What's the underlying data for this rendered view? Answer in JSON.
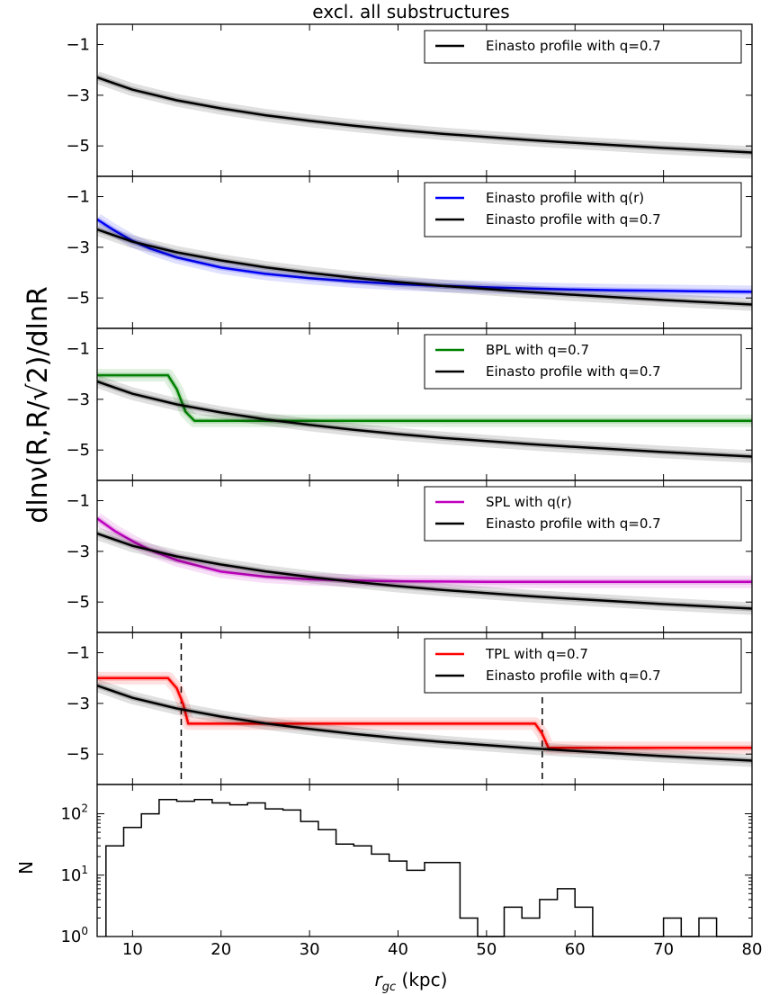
{
  "figure": {
    "title": "excl. all substructures",
    "shared_ylabel": "dlnν(R,R/√2)/dlnR",
    "xlabel_main": "r",
    "xlabel_sub": "gc",
    "xlabel_unit": " (kpc)"
  },
  "chart_data": [
    {
      "type": "line",
      "panel": 1,
      "xlim": [
        6,
        80
      ],
      "ylim": [
        -6.2,
        -0.2
      ],
      "yticks": [
        -1,
        -3,
        -5
      ],
      "grid": false,
      "legend_position": "top-right",
      "series": [
        {
          "name": "Einasto profile with q=0.7",
          "color": "#000000",
          "x": [
            6,
            10,
            15,
            20,
            25,
            30,
            35,
            40,
            45,
            50,
            55,
            60,
            65,
            70,
            75,
            80
          ],
          "y": [
            -2.3,
            -2.78,
            -3.2,
            -3.52,
            -3.79,
            -4.01,
            -4.2,
            -4.37,
            -4.52,
            -4.65,
            -4.77,
            -4.88,
            -4.98,
            -5.08,
            -5.17,
            -5.26
          ]
        }
      ]
    },
    {
      "type": "line",
      "panel": 2,
      "xlim": [
        6,
        80
      ],
      "ylim": [
        -6.2,
        -0.2
      ],
      "yticks": [
        -1,
        -3,
        -5
      ],
      "grid": false,
      "legend_position": "top-right",
      "series": [
        {
          "name": "Einasto profile with q(r)",
          "color": "#0000ff",
          "x": [
            6,
            8,
            10,
            12,
            15,
            20,
            25,
            30,
            35,
            40,
            45,
            50,
            55,
            60,
            65,
            70,
            75,
            80
          ],
          "y": [
            -1.9,
            -2.35,
            -2.75,
            -3.05,
            -3.4,
            -3.8,
            -4.05,
            -4.22,
            -4.35,
            -4.45,
            -4.52,
            -4.58,
            -4.63,
            -4.67,
            -4.7,
            -4.72,
            -4.74,
            -4.76
          ]
        },
        {
          "name": "Einasto profile with q=0.7",
          "color": "#000000",
          "x": [
            6,
            10,
            15,
            20,
            25,
            30,
            35,
            40,
            45,
            50,
            55,
            60,
            65,
            70,
            75,
            80
          ],
          "y": [
            -2.3,
            -2.78,
            -3.2,
            -3.52,
            -3.79,
            -4.01,
            -4.2,
            -4.37,
            -4.52,
            -4.65,
            -4.77,
            -4.88,
            -4.98,
            -5.08,
            -5.17,
            -5.26
          ]
        }
      ]
    },
    {
      "type": "line",
      "panel": 3,
      "xlim": [
        6,
        80
      ],
      "ylim": [
        -6.2,
        -0.2
      ],
      "yticks": [
        -1,
        -3,
        -5
      ],
      "grid": false,
      "legend_position": "top-right",
      "series": [
        {
          "name": "BPL with q=0.7",
          "color": "#008000",
          "x": [
            6,
            14,
            15,
            16,
            17,
            80
          ],
          "y": [
            -2.05,
            -2.05,
            -2.6,
            -3.5,
            -3.85,
            -3.85
          ]
        },
        {
          "name": "Einasto profile with q=0.7",
          "color": "#000000",
          "x": [
            6,
            10,
            15,
            20,
            25,
            30,
            35,
            40,
            45,
            50,
            55,
            60,
            65,
            70,
            75,
            80
          ],
          "y": [
            -2.3,
            -2.78,
            -3.2,
            -3.52,
            -3.79,
            -4.01,
            -4.2,
            -4.37,
            -4.52,
            -4.65,
            -4.77,
            -4.88,
            -4.98,
            -5.08,
            -5.17,
            -5.26
          ]
        }
      ]
    },
    {
      "type": "line",
      "panel": 4,
      "xlim": [
        6,
        80
      ],
      "ylim": [
        -6.2,
        -0.2
      ],
      "yticks": [
        -1,
        -3,
        -5
      ],
      "grid": false,
      "legend_position": "top-right",
      "series": [
        {
          "name": "SPL with q(r)",
          "color": "#bf00bf",
          "x": [
            6,
            8,
            10,
            12,
            15,
            20,
            25,
            30,
            35,
            40,
            50,
            60,
            70,
            80
          ],
          "y": [
            -1.7,
            -2.2,
            -2.6,
            -2.95,
            -3.35,
            -3.8,
            -4.0,
            -4.1,
            -4.15,
            -4.18,
            -4.2,
            -4.2,
            -4.2,
            -4.2
          ]
        },
        {
          "name": "Einasto profile with q=0.7",
          "color": "#000000",
          "x": [
            6,
            10,
            15,
            20,
            25,
            30,
            35,
            40,
            45,
            50,
            55,
            60,
            65,
            70,
            75,
            80
          ],
          "y": [
            -2.3,
            -2.78,
            -3.2,
            -3.52,
            -3.79,
            -4.01,
            -4.2,
            -4.37,
            -4.52,
            -4.65,
            -4.77,
            -4.88,
            -4.98,
            -5.08,
            -5.17,
            -5.26
          ]
        }
      ]
    },
    {
      "type": "line",
      "panel": 5,
      "xlim": [
        6,
        80
      ],
      "ylim": [
        -6.2,
        -0.2
      ],
      "yticks": [
        -1,
        -3,
        -5
      ],
      "grid": false,
      "legend_position": "top-right",
      "vlines": [
        15.5,
        56.3
      ],
      "series": [
        {
          "name": "TPL with q=0.7",
          "color": "#ff0000",
          "x": [
            6,
            14,
            15,
            15.7,
            16.3,
            55.5,
            56.3,
            57,
            80
          ],
          "y": [
            -2.0,
            -2.0,
            -2.4,
            -3.0,
            -3.8,
            -3.8,
            -4.2,
            -4.75,
            -4.75
          ]
        },
        {
          "name": "Einasto profile with q=0.7",
          "color": "#000000",
          "x": [
            6,
            10,
            15,
            20,
            25,
            30,
            35,
            40,
            45,
            50,
            55,
            60,
            65,
            70,
            75,
            80
          ],
          "y": [
            -2.3,
            -2.78,
            -3.2,
            -3.52,
            -3.79,
            -4.01,
            -4.2,
            -4.37,
            -4.52,
            -4.65,
            -4.77,
            -4.88,
            -4.98,
            -5.08,
            -5.17,
            -5.26
          ]
        }
      ]
    },
    {
      "type": "histogram",
      "panel": 6,
      "ylabel": "N",
      "xlabel": "r_gc (kpc)",
      "xlim": [
        6,
        80
      ],
      "ylim": [
        1,
        300
      ],
      "yscale": "log",
      "xticks": [
        10,
        20,
        30,
        40,
        50,
        60,
        70,
        80
      ],
      "ytick_labels": [
        "10^0",
        "10^1",
        "10^2"
      ],
      "bin_edges": [
        7,
        8,
        9,
        10,
        11,
        12,
        13,
        14,
        15,
        16,
        17,
        18,
        19,
        20,
        21,
        22,
        23,
        24,
        25,
        26,
        27,
        28,
        29,
        30,
        31,
        32,
        33,
        34,
        35,
        36,
        37,
        38,
        39,
        40,
        41,
        42,
        43,
        44,
        45,
        46,
        47,
        48,
        49,
        50,
        51,
        52,
        53,
        54,
        55,
        56,
        57,
        58,
        59,
        60,
        61,
        62,
        63,
        64,
        65,
        66,
        67,
        68,
        69,
        70,
        71,
        72,
        73,
        74,
        75,
        76,
        77,
        78,
        79,
        80
      ],
      "counts": [
        30,
        30,
        60,
        60,
        100,
        100,
        170,
        170,
        160,
        160,
        170,
        170,
        150,
        150,
        140,
        140,
        150,
        150,
        120,
        120,
        115,
        115,
        75,
        75,
        55,
        55,
        32,
        32,
        30,
        30,
        22,
        22,
        17,
        17,
        12,
        12,
        16,
        16,
        16,
        16,
        2,
        2,
        1,
        1,
        1,
        3,
        3,
        2,
        2,
        4,
        4,
        6,
        6,
        3,
        3,
        1,
        1,
        1,
        1,
        1,
        1,
        1,
        1,
        2,
        2,
        1,
        1,
        2,
        2,
        1,
        1,
        1,
        1
      ]
    }
  ]
}
